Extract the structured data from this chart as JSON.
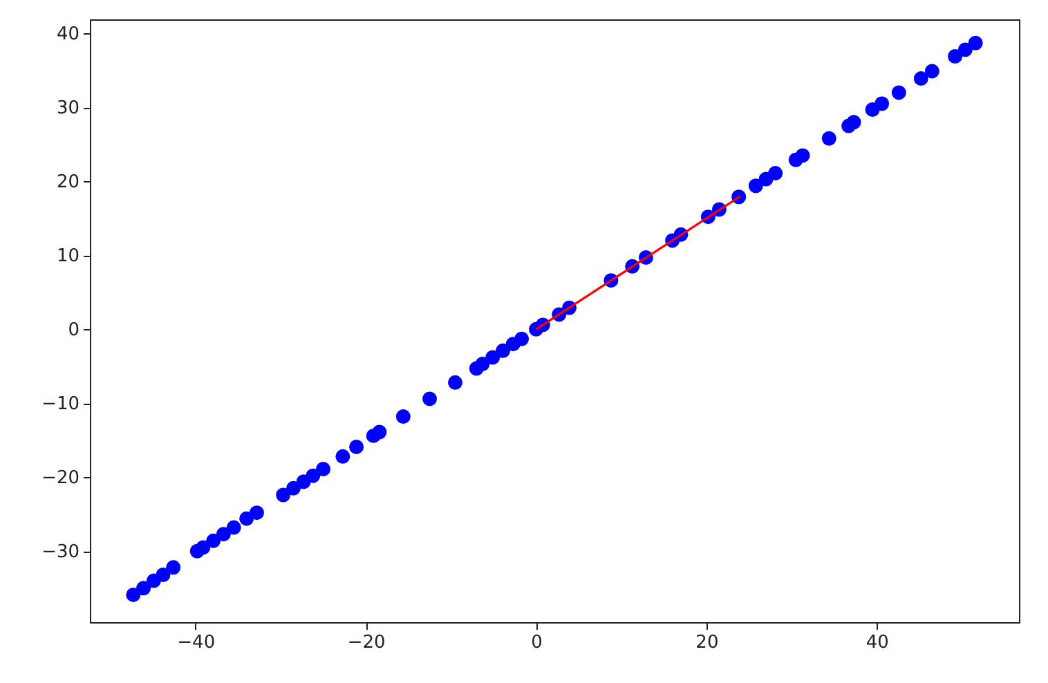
{
  "chart_data": {
    "type": "scatter",
    "xlim": [
      -52.4,
      56.7
    ],
    "ylim": [
      -39.6,
      41.9
    ],
    "xticks": [
      {
        "value": -40,
        "label": "−40"
      },
      {
        "value": -20,
        "label": "−20"
      },
      0,
      20,
      40
    ],
    "yticks": [
      {
        "value": -30,
        "label": "−30"
      },
      {
        "value": -20,
        "label": "−20"
      },
      {
        "value": -10,
        "label": "−10"
      },
      0,
      10,
      20,
      30,
      40
    ],
    "grid": false,
    "marker": "circle",
    "series": [
      {
        "color": "#0000ff",
        "x": [
          -47.3,
          -46.1,
          -44.9,
          -43.8,
          -42.6,
          -39.8,
          -39.1,
          -37.9,
          -36.7,
          -35.5,
          -34,
          -32.8,
          -29.7,
          -28.5,
          -27.3,
          -26.2,
          -25,
          -22.7,
          -21.1,
          -19.1,
          -18.4,
          -15.6,
          -12.5,
          -9.5,
          -7,
          -6.3,
          -5.1,
          -3.9,
          -2.7,
          -1.7,
          0,
          0.8,
          2.7,
          3.9,
          8.8,
          11.3,
          12.9,
          16,
          17,
          20.2,
          21.5,
          23.8,
          25.8,
          27,
          28.1,
          30.5,
          31.3,
          34.4,
          36.7,
          37.3,
          39.5,
          40.6,
          42.6,
          45.2,
          46.5,
          49.2,
          50.4,
          51.6
        ],
        "values": [
          -35.9,
          -35,
          -34,
          -33.2,
          -32.2,
          -30,
          -29.5,
          -28.6,
          -27.7,
          -26.8,
          -25.6,
          -24.8,
          -22.4,
          -21.5,
          -20.6,
          -19.8,
          -18.9,
          -17.2,
          -15.9,
          -14.4,
          -13.9,
          -11.8,
          -9.4,
          -7.2,
          -5.3,
          -4.7,
          -3.8,
          -2.9,
          -2,
          -1.3,
          0,
          0.6,
          2,
          2.9,
          6.6,
          8.5,
          9.7,
          12,
          12.8,
          15.2,
          16.2,
          17.9,
          19.4,
          20.3,
          21.1,
          22.9,
          23.5,
          25.8,
          27.5,
          28,
          29.7,
          30.5,
          32,
          33.9,
          34.9,
          36.9,
          37.8,
          38.7
        ]
      },
      {
        "type": "line",
        "color": "#ff0000",
        "marker": "none",
        "x": [
          0,
          24
        ],
        "values": [
          0,
          18
        ]
      }
    ]
  }
}
